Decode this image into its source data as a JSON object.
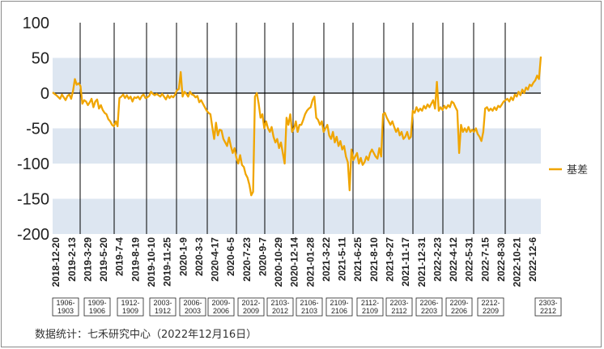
{
  "chart_data": {
    "type": "line",
    "title": "",
    "xlabel": "",
    "ylabel": "",
    "ylim": [
      -200,
      100
    ],
    "y_ticks": [
      "100",
      "50",
      "0",
      "-50",
      "-100",
      "-150",
      "-200"
    ],
    "x_tick_labels": [
      "2018-12-20",
      "2019-2-13",
      "2019-3-29",
      "2019-5-20",
      "2019-7-4",
      "2019-8-19",
      "2019-10-10",
      "2019-11-25",
      "2020-1-9",
      "2020-3-3",
      "2020-4-17",
      "2020-6-5",
      "2020-7-23",
      "2020-9-7",
      "2020-10-29",
      "2020-12-14",
      "2021-01-28",
      "2021-3-22",
      "2021-5-11",
      "2021-6-25",
      "2021-8-10",
      "2021-9-27",
      "2021-11-17",
      "2021-12-31",
      "2022-2-23",
      "2022-4-12",
      "2022-5-31",
      "2022-7-15",
      "2022-8-30",
      "2022-10-21",
      "2022-12-6"
    ],
    "contract_ranges": [
      "1906-1903",
      "1909-1906",
      "1912-1909",
      "2003-1912",
      "2006-2003",
      "2009-2006",
      "2012-2009",
      "2103-2012",
      "2106-2103",
      "2109-2106",
      "2112-2109",
      "2203-2112",
      "2206-2203",
      "2209-2206",
      "2212-2209",
      "2303-2212"
    ],
    "legend_position": "right",
    "series": [
      {
        "name": "基差",
        "color": "#F0A500",
        "x_start": "2018-12-20",
        "x_end": "2022-12-16",
        "points": [
          [
            0.0,
            1
          ],
          [
            1.0,
            -3
          ],
          [
            2.0,
            -8
          ],
          [
            2.5,
            -2
          ],
          [
            3.0,
            -6
          ],
          [
            3.5,
            -10
          ],
          [
            4.0,
            -4
          ],
          [
            4.5,
            -2
          ],
          [
            5.0,
            -8
          ],
          [
            5.5,
            3
          ],
          [
            6.0,
            20
          ],
          [
            6.5,
            12
          ],
          [
            7.0,
            14
          ],
          [
            7.5,
            10
          ],
          [
            8.0,
            -15
          ],
          [
            8.5,
            -10
          ],
          [
            9.0,
            -12
          ],
          [
            9.5,
            -17
          ],
          [
            10.0,
            -13
          ],
          [
            10.5,
            -8
          ],
          [
            11.0,
            -20
          ],
          [
            11.5,
            -12
          ],
          [
            12.0,
            -9
          ],
          [
            12.5,
            -22
          ],
          [
            13.0,
            -17
          ],
          [
            13.5,
            -24
          ],
          [
            14.0,
            -28
          ],
          [
            14.5,
            -30
          ],
          [
            15.0,
            -37
          ],
          [
            15.5,
            -40
          ],
          [
            16.0,
            -45
          ],
          [
            16.5,
            -47
          ],
          [
            17.0,
            -40
          ],
          [
            17.5,
            -47
          ],
          [
            18.0,
            -7
          ],
          [
            18.5,
            -5
          ],
          [
            19.0,
            -2
          ],
          [
            19.5,
            -7
          ],
          [
            20.0,
            -3
          ],
          [
            20.5,
            -8
          ],
          [
            21.0,
            -5
          ],
          [
            21.5,
            -12
          ],
          [
            22.0,
            -6
          ],
          [
            22.5,
            -7
          ],
          [
            23.0,
            -5
          ],
          [
            23.5,
            -9
          ],
          [
            24.0,
            -4
          ],
          [
            24.5,
            -2
          ],
          [
            25.0,
            -7
          ],
          [
            25.5,
            -6
          ],
          [
            26.0,
            -4
          ],
          [
            26.5,
            2
          ],
          [
            27.0,
            -1
          ],
          [
            27.5,
            -3
          ],
          [
            28.0,
            -1
          ],
          [
            28.5,
            -3
          ],
          [
            29.0,
            -5
          ],
          [
            29.5,
            -1
          ],
          [
            30.0,
            -5
          ],
          [
            30.5,
            -9
          ],
          [
            31.0,
            -3
          ],
          [
            31.5,
            -7
          ],
          [
            32.0,
            -4
          ],
          [
            32.5,
            -6
          ],
          [
            33.0,
            -2
          ],
          [
            33.5,
            4
          ],
          [
            34.0,
            6
          ],
          [
            34.5,
            30
          ],
          [
            35.0,
            -5
          ],
          [
            35.5,
            2
          ],
          [
            36.0,
            -1
          ],
          [
            36.5,
            -5
          ],
          [
            37.0,
            2
          ],
          [
            37.5,
            -2
          ],
          [
            38.0,
            -3
          ],
          [
            38.5,
            -6
          ],
          [
            39.0,
            -4
          ],
          [
            39.5,
            -13
          ],
          [
            40.0,
            -10
          ],
          [
            40.5,
            -15
          ],
          [
            41.0,
            -20
          ],
          [
            41.5,
            -25
          ],
          [
            42.0,
            -28
          ],
          [
            42.5,
            -30
          ],
          [
            43.0,
            -48
          ],
          [
            43.5,
            -65
          ],
          [
            44.0,
            -42
          ],
          [
            44.5,
            -60
          ],
          [
            45.0,
            -52
          ],
          [
            45.5,
            -53
          ],
          [
            46.0,
            -65
          ],
          [
            46.5,
            -70
          ],
          [
            47.0,
            -75
          ],
          [
            47.5,
            -63
          ],
          [
            48.0,
            -75
          ],
          [
            48.5,
            -85
          ],
          [
            49.0,
            -78
          ],
          [
            49.5,
            -92
          ],
          [
            50.0,
            -100
          ],
          [
            50.5,
            -88
          ],
          [
            51.0,
            -102
          ],
          [
            51.5,
            -105
          ],
          [
            52.0,
            -115
          ],
          [
            52.5,
            -120
          ],
          [
            53.0,
            -130
          ],
          [
            53.5,
            -145
          ],
          [
            54.0,
            -140
          ],
          [
            54.5,
            -5
          ],
          [
            55.0,
            0
          ],
          [
            55.5,
            -15
          ],
          [
            56.0,
            -35
          ],
          [
            56.5,
            -30
          ],
          [
            57.0,
            -50
          ],
          [
            57.5,
            -40
          ],
          [
            58.0,
            -50
          ],
          [
            58.5,
            -55
          ],
          [
            59.0,
            -48
          ],
          [
            59.5,
            -62
          ],
          [
            60.0,
            -70
          ],
          [
            60.5,
            -65
          ],
          [
            61.0,
            -78
          ],
          [
            61.5,
            -70
          ],
          [
            62.0,
            -85
          ],
          [
            62.5,
            -100
          ],
          [
            63.0,
            -35
          ],
          [
            63.5,
            -45
          ],
          [
            64.0,
            -30
          ],
          [
            64.5,
            -55
          ],
          [
            65.0,
            -50
          ],
          [
            65.5,
            -40
          ],
          [
            66.0,
            -55
          ],
          [
            66.5,
            -45
          ],
          [
            67.0,
            -45
          ],
          [
            67.5,
            -38
          ],
          [
            68.0,
            -30
          ],
          [
            68.5,
            -25
          ],
          [
            69.0,
            -22
          ],
          [
            69.5,
            -20
          ],
          [
            70.0,
            -10
          ],
          [
            70.5,
            -5
          ],
          [
            71.0,
            -35
          ],
          [
            71.5,
            -38
          ],
          [
            72.0,
            -45
          ],
          [
            72.5,
            -40
          ],
          [
            73.0,
            -55
          ],
          [
            73.5,
            -50
          ],
          [
            74.0,
            -45
          ],
          [
            74.5,
            -60
          ],
          [
            75.0,
            -65
          ],
          [
            75.5,
            -55
          ],
          [
            76.0,
            -70
          ],
          [
            76.5,
            -62
          ],
          [
            77.0,
            -75
          ],
          [
            77.5,
            -68
          ],
          [
            78.0,
            -80
          ],
          [
            78.5,
            -75
          ],
          [
            79.0,
            -90
          ],
          [
            79.5,
            -98
          ],
          [
            80.0,
            -138
          ],
          [
            80.5,
            -80
          ],
          [
            81.0,
            -95
          ],
          [
            81.5,
            -90
          ],
          [
            82.0,
            -85
          ],
          [
            82.5,
            -100
          ],
          [
            83.0,
            -92
          ],
          [
            83.5,
            -102
          ],
          [
            84.0,
            -98
          ],
          [
            84.5,
            -90
          ],
          [
            85.0,
            -95
          ],
          [
            85.5,
            -85
          ],
          [
            86.0,
            -80
          ],
          [
            86.5,
            -85
          ],
          [
            87.0,
            -90
          ],
          [
            87.5,
            -93
          ],
          [
            88.0,
            -78
          ],
          [
            88.5,
            -90
          ],
          [
            89.0,
            -30
          ],
          [
            89.5,
            -28
          ],
          [
            90.0,
            -35
          ],
          [
            90.5,
            -40
          ],
          [
            91.0,
            -45
          ],
          [
            91.5,
            -40
          ],
          [
            92.0,
            -48
          ],
          [
            92.5,
            -55
          ],
          [
            93.0,
            -50
          ],
          [
            93.5,
            -60
          ],
          [
            94.0,
            -55
          ],
          [
            94.5,
            -65
          ],
          [
            95.0,
            -62
          ],
          [
            95.5,
            -55
          ],
          [
            96.0,
            -65
          ],
          [
            96.5,
            -62
          ],
          [
            97.0,
            -25
          ],
          [
            97.5,
            -28
          ],
          [
            98.0,
            -20
          ],
          [
            98.5,
            -26
          ],
          [
            99.0,
            -22
          ],
          [
            99.5,
            -25
          ],
          [
            100.0,
            -18
          ],
          [
            100.5,
            -22
          ],
          [
            101.0,
            -16
          ],
          [
            101.5,
            -20
          ],
          [
            102.0,
            -15
          ],
          [
            102.5,
            -10
          ],
          [
            103.0,
            -22
          ],
          [
            103.5,
            16
          ],
          [
            104.0,
            -25
          ],
          [
            104.5,
            -20
          ],
          [
            105.0,
            -24
          ],
          [
            105.5,
            -18
          ],
          [
            106.0,
            -22
          ],
          [
            106.5,
            -17
          ],
          [
            107.0,
            -20
          ],
          [
            107.5,
            -12
          ],
          [
            108.0,
            -14
          ],
          [
            108.5,
            -20
          ],
          [
            109.0,
            -25
          ],
          [
            109.5,
            -85
          ],
          [
            110.0,
            -45
          ],
          [
            110.5,
            -55
          ],
          [
            111.0,
            -50
          ],
          [
            111.5,
            -55
          ],
          [
            112.0,
            -48
          ],
          [
            112.5,
            -55
          ],
          [
            113.0,
            -52
          ],
          [
            113.5,
            -55
          ],
          [
            114.0,
            -50
          ],
          [
            114.5,
            -58
          ],
          [
            115.0,
            -62
          ],
          [
            115.5,
            -68
          ],
          [
            116.0,
            -55
          ],
          [
            116.5,
            -22
          ],
          [
            117.0,
            -20
          ],
          [
            117.5,
            -25
          ],
          [
            118.0,
            -22
          ],
          [
            118.5,
            -25
          ],
          [
            119.0,
            -20
          ],
          [
            119.5,
            -24
          ],
          [
            120.0,
            -18
          ],
          [
            120.5,
            -20
          ],
          [
            121.0,
            -16
          ],
          [
            121.5,
            -12
          ],
          [
            122.0,
            -10
          ],
          [
            122.5,
            -8
          ],
          [
            123.0,
            -12
          ],
          [
            123.5,
            -6
          ],
          [
            124.0,
            -10
          ],
          [
            124.5,
            -2
          ],
          [
            125.0,
            -5
          ],
          [
            125.5,
            2
          ],
          [
            126.0,
            -3
          ],
          [
            126.5,
            5
          ],
          [
            127.0,
            0
          ],
          [
            127.5,
            8
          ],
          [
            128.0,
            5
          ],
          [
            128.5,
            12
          ],
          [
            129.0,
            10
          ],
          [
            129.5,
            15
          ],
          [
            130.0,
            18
          ],
          [
            130.5,
            25
          ],
          [
            131.0,
            20
          ],
          [
            131.5,
            52
          ]
        ]
      }
    ]
  },
  "footer": {
    "source": "数据统计：七禾研究中心（2022年12月16日）"
  }
}
